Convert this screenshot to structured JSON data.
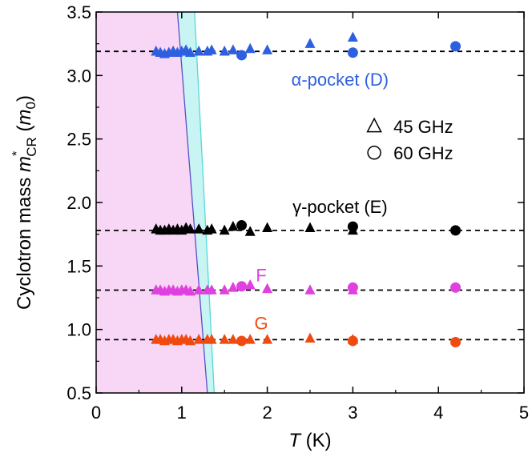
{
  "chart_data": {
    "type": "scatter",
    "title": "",
    "xlabel": {
      "italic": "T",
      "rest": " (K)"
    },
    "ylabel": {
      "base": "Cyclotron mass ",
      "italic": "m",
      "sup": "*",
      "sub": "CR",
      "unit_open": " (",
      "unit_italic": "m",
      "unit_sub": "0",
      "unit_close": ")"
    },
    "xlim": [
      0,
      5
    ],
    "ylim": [
      0.5,
      3.5
    ],
    "xticks": [
      0,
      1,
      2,
      3,
      4,
      5
    ],
    "xtick_labels": [
      "0",
      "1",
      "2",
      "3",
      "4",
      "5"
    ],
    "yticks": [
      0.5,
      1.0,
      1.5,
      2.0,
      2.5,
      3.0,
      3.5
    ],
    "ytick_labels": [
      "0.5",
      "1.0",
      "1.5",
      "2.0",
      "2.5",
      "3.0",
      "3.5"
    ],
    "shaded_regions": [
      {
        "name": "pink-region",
        "color": "#f7d7f5",
        "polygon": [
          [
            0,
            0.5
          ],
          [
            0,
            3.5
          ],
          [
            0.95,
            3.5
          ],
          [
            1.3,
            0.5
          ]
        ]
      },
      {
        "name": "cyan-band",
        "color": "#c8f4f4",
        "polygon": [
          [
            0.95,
            3.5
          ],
          [
            1.15,
            3.5
          ],
          [
            1.38,
            0.5
          ],
          [
            1.3,
            0.5
          ]
        ]
      }
    ],
    "boundary_lines": [
      {
        "name": "blue-boundary-line",
        "color": "#5a4fc8",
        "points": [
          [
            0.95,
            3.5
          ],
          [
            1.3,
            0.5
          ]
        ]
      },
      {
        "name": "cyan-boundary-line",
        "color": "#55d9d9",
        "points": [
          [
            1.15,
            3.5
          ],
          [
            1.38,
            0.5
          ]
        ]
      }
    ],
    "reference_lines": [
      {
        "name": "alpha-reference-line",
        "y": 3.19
      },
      {
        "name": "gamma-reference-line",
        "y": 1.78
      },
      {
        "name": "f-reference-line",
        "y": 1.31
      },
      {
        "name": "g-reference-line",
        "y": 0.92
      }
    ],
    "series": [
      {
        "name": "alpha 45 GHz",
        "color": "#2e5fe0",
        "marker": "triangle",
        "points": [
          [
            0.7,
            3.19
          ],
          [
            0.75,
            3.18
          ],
          [
            0.8,
            3.17
          ],
          [
            0.85,
            3.18
          ],
          [
            0.9,
            3.19
          ],
          [
            0.95,
            3.18
          ],
          [
            1.0,
            3.19
          ],
          [
            1.05,
            3.2
          ],
          [
            1.1,
            3.18
          ],
          [
            1.2,
            3.19
          ],
          [
            1.3,
            3.19
          ],
          [
            1.35,
            3.2
          ],
          [
            1.5,
            3.19
          ],
          [
            1.6,
            3.2
          ],
          [
            1.8,
            3.21
          ],
          [
            2.0,
            3.2
          ],
          [
            2.5,
            3.25
          ],
          [
            3.0,
            3.3
          ]
        ]
      },
      {
        "name": "alpha 60 GHz",
        "color": "#2e5fe0",
        "marker": "circle",
        "points": [
          [
            1.7,
            3.16
          ],
          [
            3.0,
            3.18
          ],
          [
            4.2,
            3.23
          ]
        ]
      },
      {
        "name": "gamma 45 GHz",
        "color": "#000000",
        "marker": "triangle",
        "points": [
          [
            0.7,
            1.79
          ],
          [
            0.75,
            1.78
          ],
          [
            0.8,
            1.78
          ],
          [
            0.85,
            1.79
          ],
          [
            0.9,
            1.78
          ],
          [
            0.95,
            1.79
          ],
          [
            1.0,
            1.78
          ],
          [
            1.05,
            1.8
          ],
          [
            1.1,
            1.79
          ],
          [
            1.2,
            1.79
          ],
          [
            1.3,
            1.78
          ],
          [
            1.35,
            1.79
          ],
          [
            1.5,
            1.78
          ],
          [
            1.6,
            1.81
          ],
          [
            1.8,
            1.77
          ],
          [
            2.0,
            1.8
          ],
          [
            2.5,
            1.8
          ],
          [
            3.0,
            1.78
          ]
        ]
      },
      {
        "name": "gamma 60 GHz",
        "color": "#000000",
        "marker": "circle",
        "points": [
          [
            1.7,
            1.82
          ],
          [
            3.0,
            1.81
          ],
          [
            4.2,
            1.78
          ]
        ]
      },
      {
        "name": "F 45 GHz",
        "color": "#e040e0",
        "marker": "triangle",
        "points": [
          [
            0.7,
            1.31
          ],
          [
            0.75,
            1.31
          ],
          [
            0.8,
            1.3
          ],
          [
            0.85,
            1.31
          ],
          [
            0.9,
            1.31
          ],
          [
            0.95,
            1.3
          ],
          [
            1.0,
            1.31
          ],
          [
            1.05,
            1.31
          ],
          [
            1.1,
            1.3
          ],
          [
            1.2,
            1.31
          ],
          [
            1.3,
            1.31
          ],
          [
            1.35,
            1.31
          ],
          [
            1.5,
            1.31
          ],
          [
            1.6,
            1.33
          ],
          [
            1.8,
            1.35
          ],
          [
            2.0,
            1.32
          ],
          [
            2.5,
            1.31
          ],
          [
            3.0,
            1.31
          ]
        ]
      },
      {
        "name": "F 60 GHz",
        "color": "#e040e0",
        "marker": "circle",
        "points": [
          [
            1.7,
            1.34
          ],
          [
            3.0,
            1.33
          ],
          [
            4.2,
            1.33
          ]
        ]
      },
      {
        "name": "G 45 GHz",
        "color": "#f04a10",
        "marker": "triangle",
        "points": [
          [
            0.7,
            0.92
          ],
          [
            0.75,
            0.92
          ],
          [
            0.8,
            0.91
          ],
          [
            0.85,
            0.92
          ],
          [
            0.9,
            0.92
          ],
          [
            0.95,
            0.91
          ],
          [
            1.0,
            0.92
          ],
          [
            1.05,
            0.92
          ],
          [
            1.1,
            0.91
          ],
          [
            1.2,
            0.92
          ],
          [
            1.3,
            0.92
          ],
          [
            1.35,
            0.92
          ],
          [
            1.5,
            0.92
          ],
          [
            1.6,
            0.92
          ],
          [
            1.8,
            0.92
          ],
          [
            2.0,
            0.92
          ],
          [
            2.5,
            0.93
          ],
          [
            3.0,
            0.92
          ]
        ]
      },
      {
        "name": "G 60 GHz",
        "color": "#f04a10",
        "marker": "circle",
        "points": [
          [
            1.7,
            0.91
          ],
          [
            3.0,
            0.91
          ],
          [
            4.2,
            0.9
          ]
        ]
      }
    ],
    "annotations": [
      {
        "name": "alpha-pocket-label",
        "text": "α-pocket (D)",
        "x": 2.85,
        "y": 2.97,
        "color": "#2e5fe0"
      },
      {
        "name": "gamma-pocket-label",
        "text": "γ-pocket (E)",
        "x": 2.85,
        "y": 1.97,
        "color": "#000000"
      },
      {
        "name": "f-label",
        "text": "F",
        "x": 1.93,
        "y": 1.43,
        "color": "#e040e0"
      },
      {
        "name": "g-label",
        "text": "G",
        "x": 1.93,
        "y": 1.05,
        "color": "#f04a10"
      }
    ],
    "legend": {
      "position": "right",
      "entries": [
        {
          "marker": "triangle",
          "label": "45 GHz"
        },
        {
          "marker": "circle",
          "label": "60 GHz"
        }
      ]
    }
  }
}
